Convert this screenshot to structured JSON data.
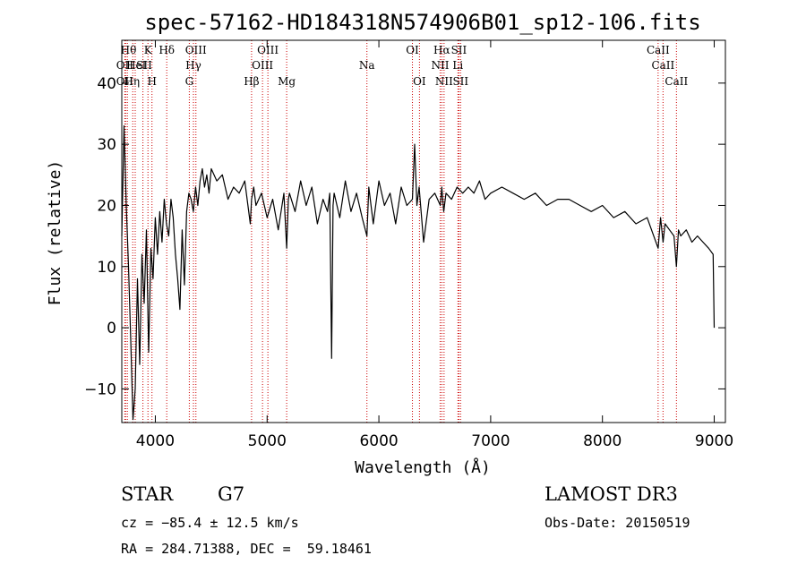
{
  "chart_data": {
    "type": "line",
    "title": "spec-57162-HD184318N574906B01_sp12-106.fits",
    "xlabel": "Wavelength (Å)",
    "ylabel": "Flux (relative)",
    "xlim": [
      3700,
      9100
    ],
    "ylim": [
      -15.5,
      47
    ],
    "xticks": [
      4000,
      5000,
      6000,
      7000,
      8000,
      9000
    ],
    "xtick_labels": [
      "4000",
      "5000",
      "6000",
      "7000",
      "8000",
      "9000"
    ],
    "yticks": [
      -10,
      0,
      10,
      20,
      30,
      40
    ],
    "ytick_labels": [
      "−10",
      "0",
      "10",
      "20",
      "30",
      "40"
    ],
    "series": [
      {
        "name": "flux",
        "x": [
          3700,
          3720,
          3740,
          3760,
          3780,
          3800,
          3820,
          3840,
          3860,
          3880,
          3900,
          3920,
          3940,
          3960,
          3980,
          4000,
          4020,
          4040,
          4060,
          4080,
          4100,
          4120,
          4140,
          4160,
          4180,
          4200,
          4220,
          4240,
          4260,
          4280,
          4300,
          4320,
          4340,
          4360,
          4380,
          4400,
          4420,
          4440,
          4460,
          4480,
          4500,
          4550,
          4600,
          4650,
          4700,
          4750,
          4800,
          4850,
          4861,
          4880,
          4900,
          4950,
          5000,
          5050,
          5100,
          5150,
          5175,
          5190,
          5200,
          5250,
          5300,
          5350,
          5400,
          5450,
          5500,
          5540,
          5560,
          5577,
          5590,
          5600,
          5650,
          5700,
          5750,
          5800,
          5850,
          5893,
          5910,
          5950,
          6000,
          6050,
          6100,
          6150,
          6200,
          6250,
          6300,
          6320,
          6340,
          6360,
          6400,
          6450,
          6500,
          6550,
          6563,
          6580,
          6600,
          6650,
          6700,
          6750,
          6800,
          6850,
          6900,
          6950,
          7000,
          7100,
          7200,
          7300,
          7400,
          7500,
          7600,
          7700,
          7800,
          7900,
          8000,
          8100,
          8200,
          8300,
          8400,
          8498,
          8520,
          8542,
          8560,
          8600,
          8640,
          8662,
          8680,
          8700,
          8750,
          8800,
          8850,
          8900,
          8950,
          8990,
          9000
        ],
        "values": [
          15,
          33,
          20,
          10,
          -2,
          -15,
          -10,
          8,
          -6,
          12,
          4,
          16,
          -4,
          13,
          8,
          18,
          12,
          19,
          14,
          21,
          17,
          15,
          21,
          18,
          12,
          8,
          3,
          16,
          7,
          19,
          22,
          21,
          19,
          23,
          20,
          24,
          26,
          23,
          25,
          22,
          26,
          24,
          25,
          21,
          23,
          22,
          24,
          17,
          21,
          23,
          20,
          22,
          18,
          21,
          16,
          22,
          13,
          21,
          22,
          19,
          24,
          20,
          23,
          17,
          21,
          19,
          22,
          -5,
          20,
          22,
          18,
          24,
          19,
          22,
          18,
          15,
          23,
          17,
          24,
          20,
          22,
          17,
          23,
          20,
          21,
          30,
          20,
          23,
          14,
          21,
          22,
          20,
          23,
          19,
          22,
          21,
          23,
          22,
          23,
          22,
          24,
          21,
          22,
          23,
          22,
          21,
          22,
          20,
          21,
          21,
          20,
          19,
          20,
          18,
          19,
          17,
          18,
          13,
          18,
          14,
          17,
          16,
          15,
          10,
          16,
          15,
          16,
          14,
          15,
          14,
          13,
          12,
          0
        ],
        "color": "#000000"
      }
    ],
    "reference_lines": [
      {
        "wavelength": 3727,
        "labels": [
          "OII"
        ]
      },
      {
        "wavelength": 3734,
        "labels": [
          "OII"
        ]
      },
      {
        "wavelength": 3750,
        "labels": [
          "Hθ"
        ]
      },
      {
        "wavelength": 3798,
        "labels": [
          "Hη"
        ]
      },
      {
        "wavelength": 3820,
        "labels": [
          "HeI"
        ]
      },
      {
        "wavelength": 3889,
        "labels": [
          "SII"
        ]
      },
      {
        "wavelength": 3934,
        "labels": [
          "K"
        ]
      },
      {
        "wavelength": 3970,
        "labels": [
          "H"
        ]
      },
      {
        "wavelength": 4102,
        "labels": [
          "Hδ"
        ]
      },
      {
        "wavelength": 4304,
        "labels": [
          "G"
        ]
      },
      {
        "wavelength": 4341,
        "labels": [
          "Hγ"
        ]
      },
      {
        "wavelength": 4363,
        "labels": [
          "OIII"
        ]
      },
      {
        "wavelength": 4861,
        "labels": [
          "Hβ"
        ]
      },
      {
        "wavelength": 4959,
        "labels": [
          "OIII"
        ]
      },
      {
        "wavelength": 5007,
        "labels": [
          "OIII"
        ]
      },
      {
        "wavelength": 5175,
        "labels": [
          "Mg"
        ]
      },
      {
        "wavelength": 5893,
        "labels": [
          "Na"
        ]
      },
      {
        "wavelength": 6300,
        "labels": [
          "OI"
        ]
      },
      {
        "wavelength": 6363,
        "labels": [
          "OI"
        ]
      },
      {
        "wavelength": 6548,
        "labels": [
          "NII"
        ]
      },
      {
        "wavelength": 6563,
        "labels": [
          "Hα"
        ]
      },
      {
        "wavelength": 6583,
        "labels": [
          "NII"
        ]
      },
      {
        "wavelength": 6707,
        "labels": [
          "Li"
        ]
      },
      {
        "wavelength": 6716,
        "labels": [
          "SII"
        ]
      },
      {
        "wavelength": 6731,
        "labels": [
          "SII"
        ]
      },
      {
        "wavelength": 8498,
        "labels": [
          "CaII"
        ]
      },
      {
        "wavelength": 8542,
        "labels": [
          "CaII"
        ]
      },
      {
        "wavelength": 8662,
        "labels": [
          "CaII"
        ]
      }
    ],
    "line_labels": [
      {
        "text": "OII",
        "w": 3727,
        "row": 1
      },
      {
        "text": "OII",
        "w": 3727,
        "row": 2
      },
      {
        "text": "Hθ",
        "w": 3760,
        "row": 0
      },
      {
        "text": "K",
        "w": 3934,
        "row": 0
      },
      {
        "text": "Hδ",
        "w": 4102,
        "row": 0
      },
      {
        "text": "OIII",
        "w": 4363,
        "row": 0
      },
      {
        "text": "OIII",
        "w": 5007,
        "row": 0
      },
      {
        "text": "OI",
        "w": 6300,
        "row": 0
      },
      {
        "text": "Hα",
        "w": 6563,
        "row": 0
      },
      {
        "text": "SII",
        "w": 6716,
        "row": 0
      },
      {
        "text": "CaII",
        "w": 8498,
        "row": 0
      },
      {
        "text": "HeI",
        "w": 3830,
        "row": 1
      },
      {
        "text": "SII",
        "w": 3900,
        "row": 1
      },
      {
        "text": "Hγ",
        "w": 4341,
        "row": 1
      },
      {
        "text": "OIII",
        "w": 4959,
        "row": 1
      },
      {
        "text": "Na",
        "w": 5893,
        "row": 1
      },
      {
        "text": "NII",
        "w": 6548,
        "row": 1
      },
      {
        "text": "Li",
        "w": 6707,
        "row": 1
      },
      {
        "text": "CaII",
        "w": 8542,
        "row": 1
      },
      {
        "text": "Hη",
        "w": 3790,
        "row": 2
      },
      {
        "text": "H",
        "w": 3970,
        "row": 2
      },
      {
        "text": "G",
        "w": 4304,
        "row": 2
      },
      {
        "text": "Hβ",
        "w": 4861,
        "row": 2
      },
      {
        "text": "Mg",
        "w": 5175,
        "row": 2
      },
      {
        "text": "OI",
        "w": 6363,
        "row": 2
      },
      {
        "text": "NII",
        "w": 6583,
        "row": 2
      },
      {
        "text": "SII",
        "w": 6731,
        "row": 2
      },
      {
        "text": "CaII",
        "w": 8662,
        "row": 2
      }
    ]
  },
  "info": {
    "object_class": "STAR",
    "subclass": "G7",
    "cz": "cz = −85.4 ± 12.5 km/s",
    "coords": "RA = 284.71388, DEC =  59.18461",
    "survey": "LAMOST DR3",
    "obs_date": "Obs-Date: 20150519"
  },
  "colors": {
    "reference_line": "#cc0000",
    "spectrum": "#000000",
    "axes": "#000000"
  }
}
